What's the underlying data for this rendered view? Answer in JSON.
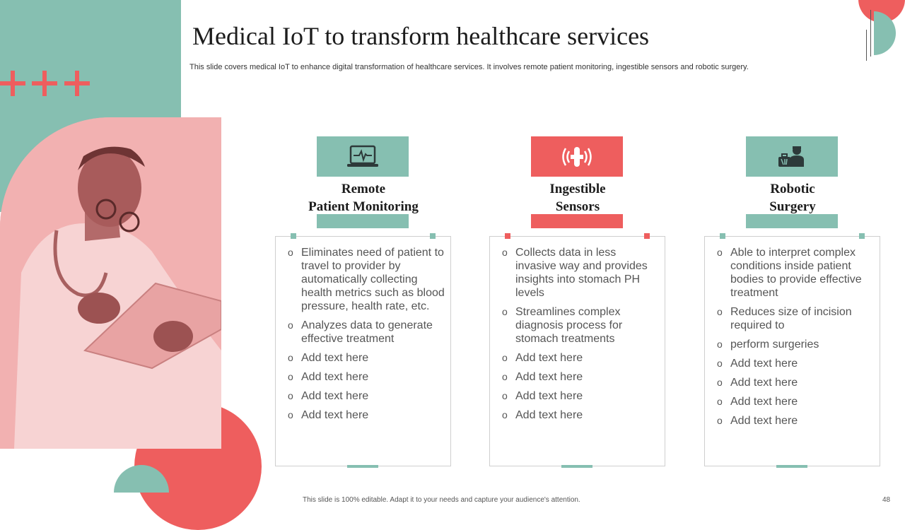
{
  "title": "Medical IoT to transform healthcare services",
  "subtitle": "This slide covers medical IoT  to enhance digital transformation of healthcare services. It involves remote patient monitoring, ingestible sensors and robotic surgery.",
  "columns": [
    {
      "icon": "laptop-heartbeat-icon",
      "heading_line1": "Remote",
      "heading_line2": "Patient Monitoring",
      "bullets": [
        "Eliminates need of patient to travel to provider by automatically  collecting health metrics such as blood pressure, health rate, etc.",
        "Analyzes data to generate effective treatment",
        "Add text here",
        "Add text here",
        "Add text here",
        "Add text here"
      ]
    },
    {
      "icon": "ingestible-sensor-icon",
      "heading_line1": "Ingestible",
      "heading_line2": "Sensors",
      "bullets": [
        "Collects data in less invasive way  and provides insights into stomach PH levels",
        "Streamlines complex diagnosis process for stomach treatments",
        "Add text here",
        "Add text here",
        "Add text here",
        "Add text here"
      ]
    },
    {
      "icon": "surgeon-icon",
      "heading_line1": "Robotic",
      "heading_line2": "Surgery",
      "bullets": [
        "Able to interpret complex conditions inside patient bodies to provide effective treatment",
        "Reduces size of incision required to",
        "perform surgeries",
        "Add text here",
        "Add text here",
        "Add text here",
        "Add text here"
      ]
    }
  ],
  "footer": "This slide is 100% editable. Adapt it to your needs and capture your audience's attention.",
  "page_number": "48",
  "colors": {
    "teal": "#86bfb1",
    "red": "#ee5e5e",
    "pink": "#f2b1b1"
  }
}
